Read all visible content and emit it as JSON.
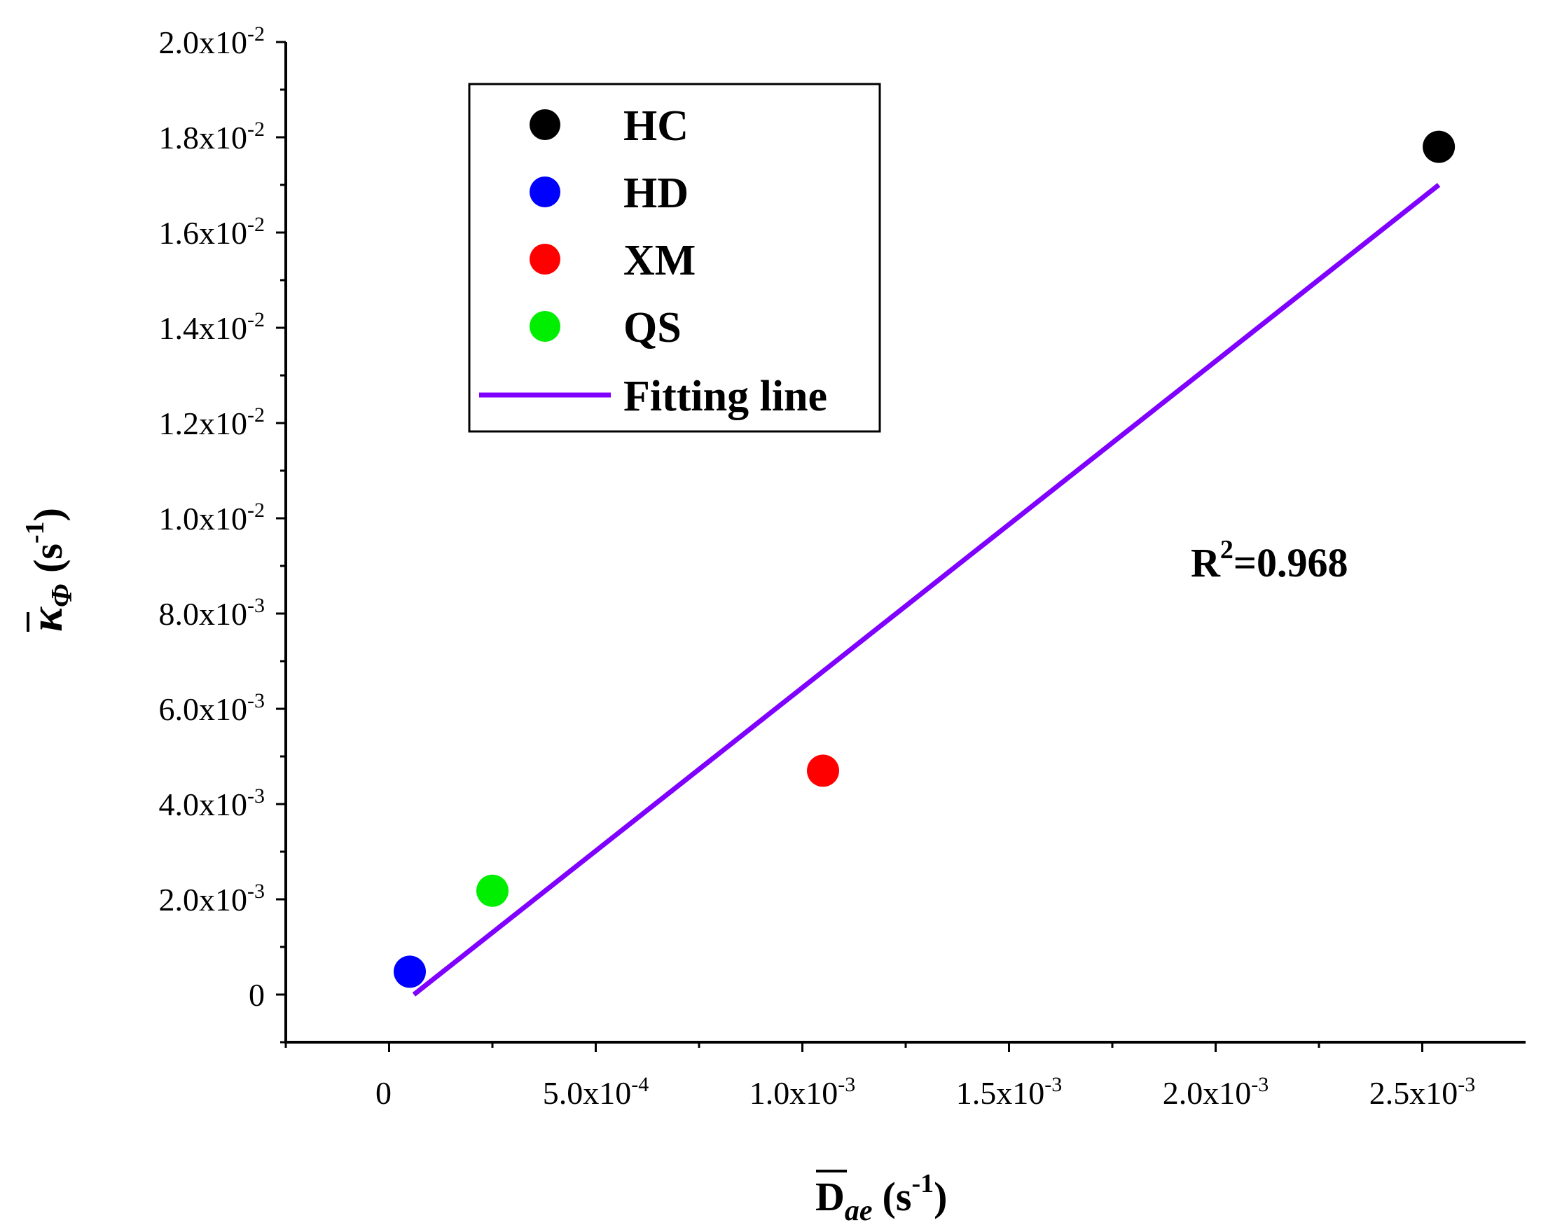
{
  "chart_data": {
    "type": "scatter",
    "title": "",
    "xlabel": {
      "symbol": "D",
      "subscript": "ae",
      "unit": "(s",
      "unit_exp": "-1",
      "unit_close": ")"
    },
    "ylabel": {
      "symbol": "κ",
      "subscript": "Φ",
      "unit": "(s",
      "unit_exp": "-1",
      "unit_close": ")"
    },
    "xlim": [
      -0.00025,
      0.00275
    ],
    "ylim": [
      -0.001,
      0.02
    ],
    "x_ticks": [
      {
        "value": 0,
        "mant": "0",
        "exp": ""
      },
      {
        "value": 0.0005,
        "mant": "5.0x10",
        "exp": "-4"
      },
      {
        "value": 0.001,
        "mant": "1.0x10",
        "exp": "-3"
      },
      {
        "value": 0.0015,
        "mant": "1.5x10",
        "exp": "-3"
      },
      {
        "value": 0.002,
        "mant": "2.0x10",
        "exp": "-3"
      },
      {
        "value": 0.0025,
        "mant": "2.5x10",
        "exp": "-3"
      }
    ],
    "y_ticks": [
      {
        "value": 0,
        "mant": "0",
        "exp": ""
      },
      {
        "value": 0.002,
        "mant": "2.0x10",
        "exp": "-3"
      },
      {
        "value": 0.004,
        "mant": "4.0x10",
        "exp": "-3"
      },
      {
        "value": 0.006,
        "mant": "6.0x10",
        "exp": "-3"
      },
      {
        "value": 0.008,
        "mant": "8.0x10",
        "exp": "-3"
      },
      {
        "value": 0.01,
        "mant": "1.0x10",
        "exp": "-2"
      },
      {
        "value": 0.012,
        "mant": "1.2x10",
        "exp": "-2"
      },
      {
        "value": 0.014,
        "mant": "1.4x10",
        "exp": "-2"
      },
      {
        "value": 0.016,
        "mant": "1.6x10",
        "exp": "-2"
      },
      {
        "value": 0.018,
        "mant": "1.8x10",
        "exp": "-2"
      },
      {
        "value": 0.02,
        "mant": "2.0x10",
        "exp": "-2"
      }
    ],
    "series": [
      {
        "name": "HC",
        "color": "#000000",
        "x": 0.00254,
        "y": 0.0178
      },
      {
        "name": "HD",
        "color": "#0000ff",
        "x": 5e-05,
        "y": 0.00048
      },
      {
        "name": "XM",
        "color": "#ff0000",
        "x": 0.00105,
        "y": 0.0047
      },
      {
        "name": "QS",
        "color": "#00ee00",
        "x": 0.00025,
        "y": 0.00218
      }
    ],
    "fit_line": {
      "name": "Fitting line",
      "color": "#7f00ff",
      "x": [
        6e-05,
        0.00254
      ],
      "y": [
        0.0,
        0.017
      ]
    },
    "annotation": {
      "base": "R",
      "sup": "2",
      "rest": "=0.968"
    },
    "legend_position": "top-left"
  }
}
